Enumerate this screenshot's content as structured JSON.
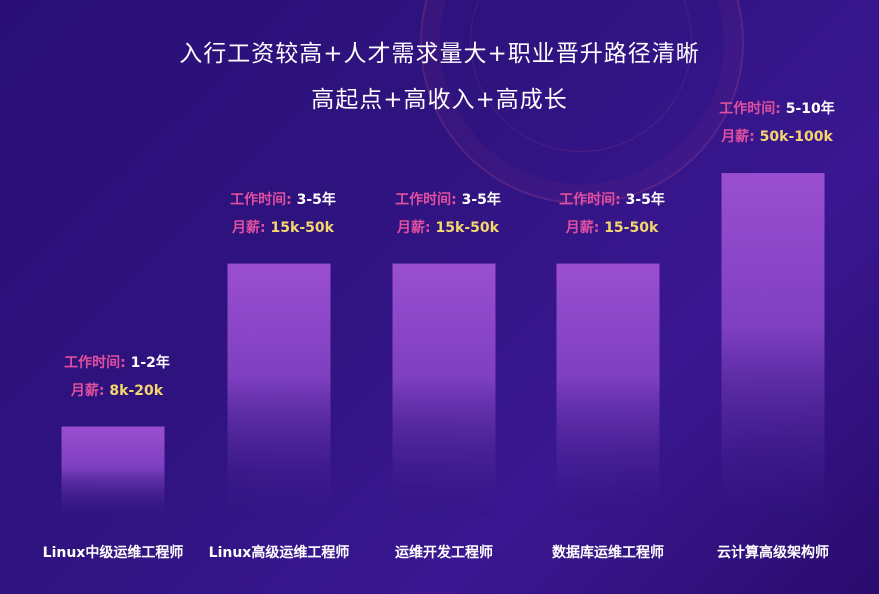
{
  "titles": {
    "line1": "入行工资较高+人才需求量大+职业晋升路径清晰",
    "line2": "高起点+高收入+高成长"
  },
  "colors": {
    "background": "#2f137f",
    "bar_top": "#9a4fd0",
    "bar_bottom": "#2f137f",
    "key_text": "#e0509e",
    "salary_value": "#f5d76e"
  },
  "chart_data": {
    "type": "bar",
    "categories": [
      "Linux中级运维工程师",
      "Linux高级运维工程师",
      "运维开发工程师",
      "数据库运维工程师",
      "云计算高级架构师"
    ],
    "values": [
      1,
      2.8,
      2.8,
      2.8,
      3.8
    ],
    "annotations": [
      {
        "time_key": "工作时间:",
        "time_value": "1-2年",
        "salary_key": "月薪:",
        "salary_value": "8k-20k"
      },
      {
        "time_key": "工作时间:",
        "time_value": "3-5年",
        "salary_key": "月薪:",
        "salary_value": "15k-50k"
      },
      {
        "time_key": "工作时间:",
        "time_value": "3-5年",
        "salary_key": "月薪:",
        "salary_value": "15k-50k"
      },
      {
        "time_key": "工作时间:",
        "time_value": "3-5年",
        "salary_key": "月薪:",
        "salary_value": "15-50k"
      },
      {
        "time_key": "工作时间:",
        "time_value": "5-10年",
        "salary_key": "月薪:",
        "salary_value": "50k-100k"
      }
    ],
    "ylim": [
      0,
      4
    ],
    "grid": false
  }
}
